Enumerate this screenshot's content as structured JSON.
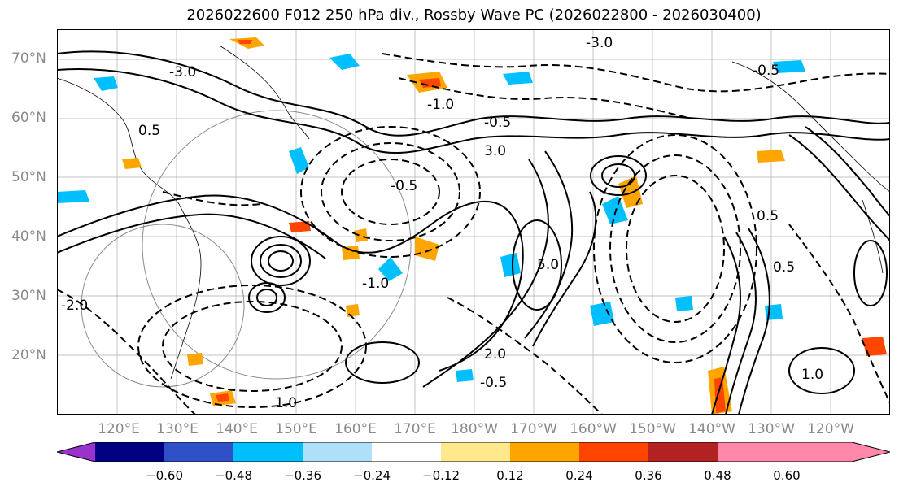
{
  "title": "2026022600 F012 250 hPa div., Rossby Wave PC (2026022800 - 2026030400)",
  "lat_labels": [
    "70°N",
    "60°N",
    "50°N",
    "40°N",
    "30°N",
    "20°N"
  ],
  "lon_labels": [
    "120°E",
    "130°E",
    "140°E",
    "150°E",
    "160°E",
    "170°E",
    "180°W",
    "170°W",
    "160°W",
    "150°W",
    "140°W",
    "130°W",
    "120°W"
  ],
  "contour_labels": [
    "-3.0",
    "-3.0",
    "-1.0",
    "-0.5",
    "-0.5",
    "0.5",
    "-2.0",
    "5.0",
    "1.0",
    "0.5",
    "-0.5",
    "-1.0",
    "3.0",
    "2.0",
    "-0.5",
    "0.5",
    "1.0"
  ],
  "colorbar": {
    "colors": [
      "#9933cc",
      "#000080",
      "#3050c8",
      "#00bfff",
      "#b0e0f8",
      "#ffffff",
      "#ffe98c",
      "#ffa500",
      "#ff4500",
      "#b22222",
      "#ff88aa"
    ],
    "tick_labels": [
      "−0.60",
      "−0.48",
      "−0.36",
      "−0.24",
      "−0.12",
      "0.12",
      "0.24",
      "0.36",
      "0.48",
      "0.60"
    ],
    "levels": [
      -0.6,
      -0.48,
      -0.36,
      -0.24,
      -0.12,
      0.12,
      0.24,
      0.36,
      0.48,
      0.6
    ]
  }
}
